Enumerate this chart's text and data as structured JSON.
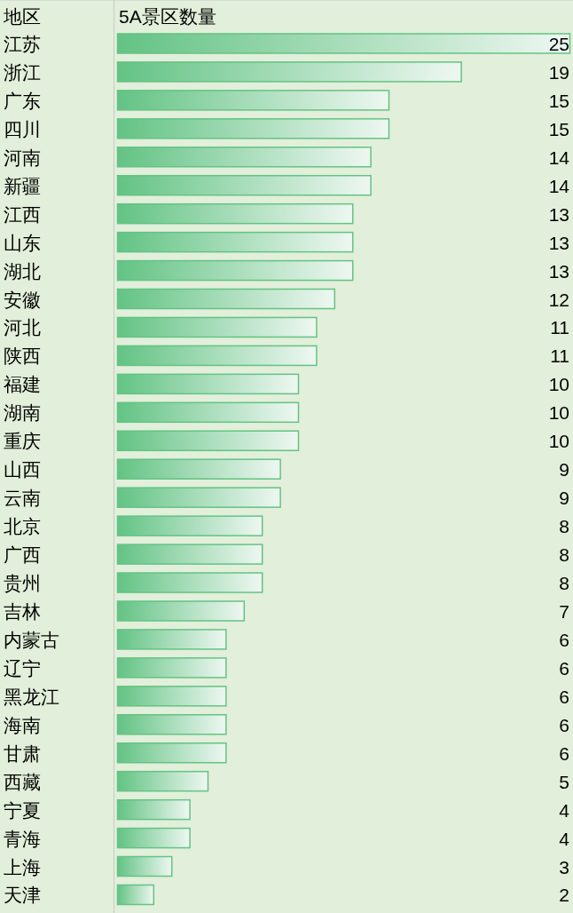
{
  "chart_data": {
    "type": "bar",
    "orientation": "horizontal",
    "ylabel": "地区",
    "xlabel": "5A景区数量",
    "data_labels": true,
    "color": "#63c384",
    "categories": [
      "江苏",
      "浙江",
      "广东",
      "四川",
      "河南",
      "新疆",
      "江西",
      "山东",
      "湖北",
      "安徽",
      "河北",
      "陕西",
      "福建",
      "湖南",
      "重庆",
      "山西",
      "云南",
      "北京",
      "广西",
      "贵州",
      "吉林",
      "内蒙古",
      "辽宁",
      "黑龙江",
      "海南",
      "甘肃",
      "西藏",
      "宁夏",
      "青海",
      "上海",
      "天津"
    ],
    "values": [
      25,
      19,
      15,
      15,
      14,
      14,
      13,
      13,
      13,
      12,
      11,
      11,
      10,
      10,
      10,
      9,
      9,
      8,
      8,
      8,
      7,
      6,
      6,
      6,
      6,
      6,
      5,
      4,
      4,
      3,
      2
    ]
  }
}
